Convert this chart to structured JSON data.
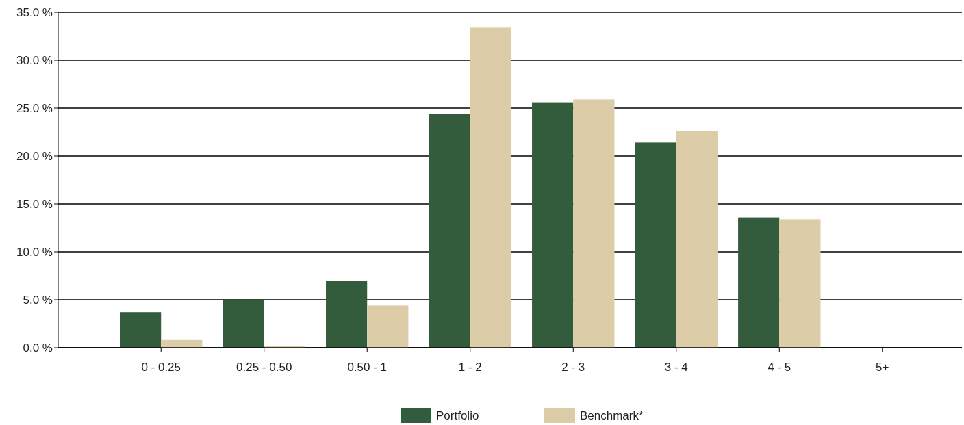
{
  "chart_data": {
    "type": "bar",
    "categories": [
      "0 - 0.25",
      "0.25 - 0.50",
      "0.50 - 1",
      "1 - 2",
      "2 - 3",
      "3 - 4",
      "4 - 5",
      "5+"
    ],
    "series": [
      {
        "name": "Portfolio",
        "color": "#335c3c",
        "values": [
          3.7,
          5.0,
          7.0,
          24.4,
          25.6,
          21.4,
          13.6,
          0
        ]
      },
      {
        "name": "Benchmark*",
        "color": "#ddcca8",
        "values": [
          0.8,
          0.2,
          4.4,
          33.4,
          25.9,
          22.6,
          13.4,
          0
        ]
      }
    ],
    "ylim": [
      0,
      35
    ],
    "yticks": [
      {
        "value": 0,
        "label": "0.0 %"
      },
      {
        "value": 5,
        "label": "5.0 %"
      },
      {
        "value": 10,
        "label": "10.0 %"
      },
      {
        "value": 15,
        "label": "15.0 %"
      },
      {
        "value": 20,
        "label": "20.0 %"
      },
      {
        "value": 25,
        "label": "25.0 %"
      },
      {
        "value": 30,
        "label": "30.0 %"
      },
      {
        "value": 35,
        "label": "35.0 %"
      }
    ],
    "grid": "y",
    "legend": "bottom"
  }
}
